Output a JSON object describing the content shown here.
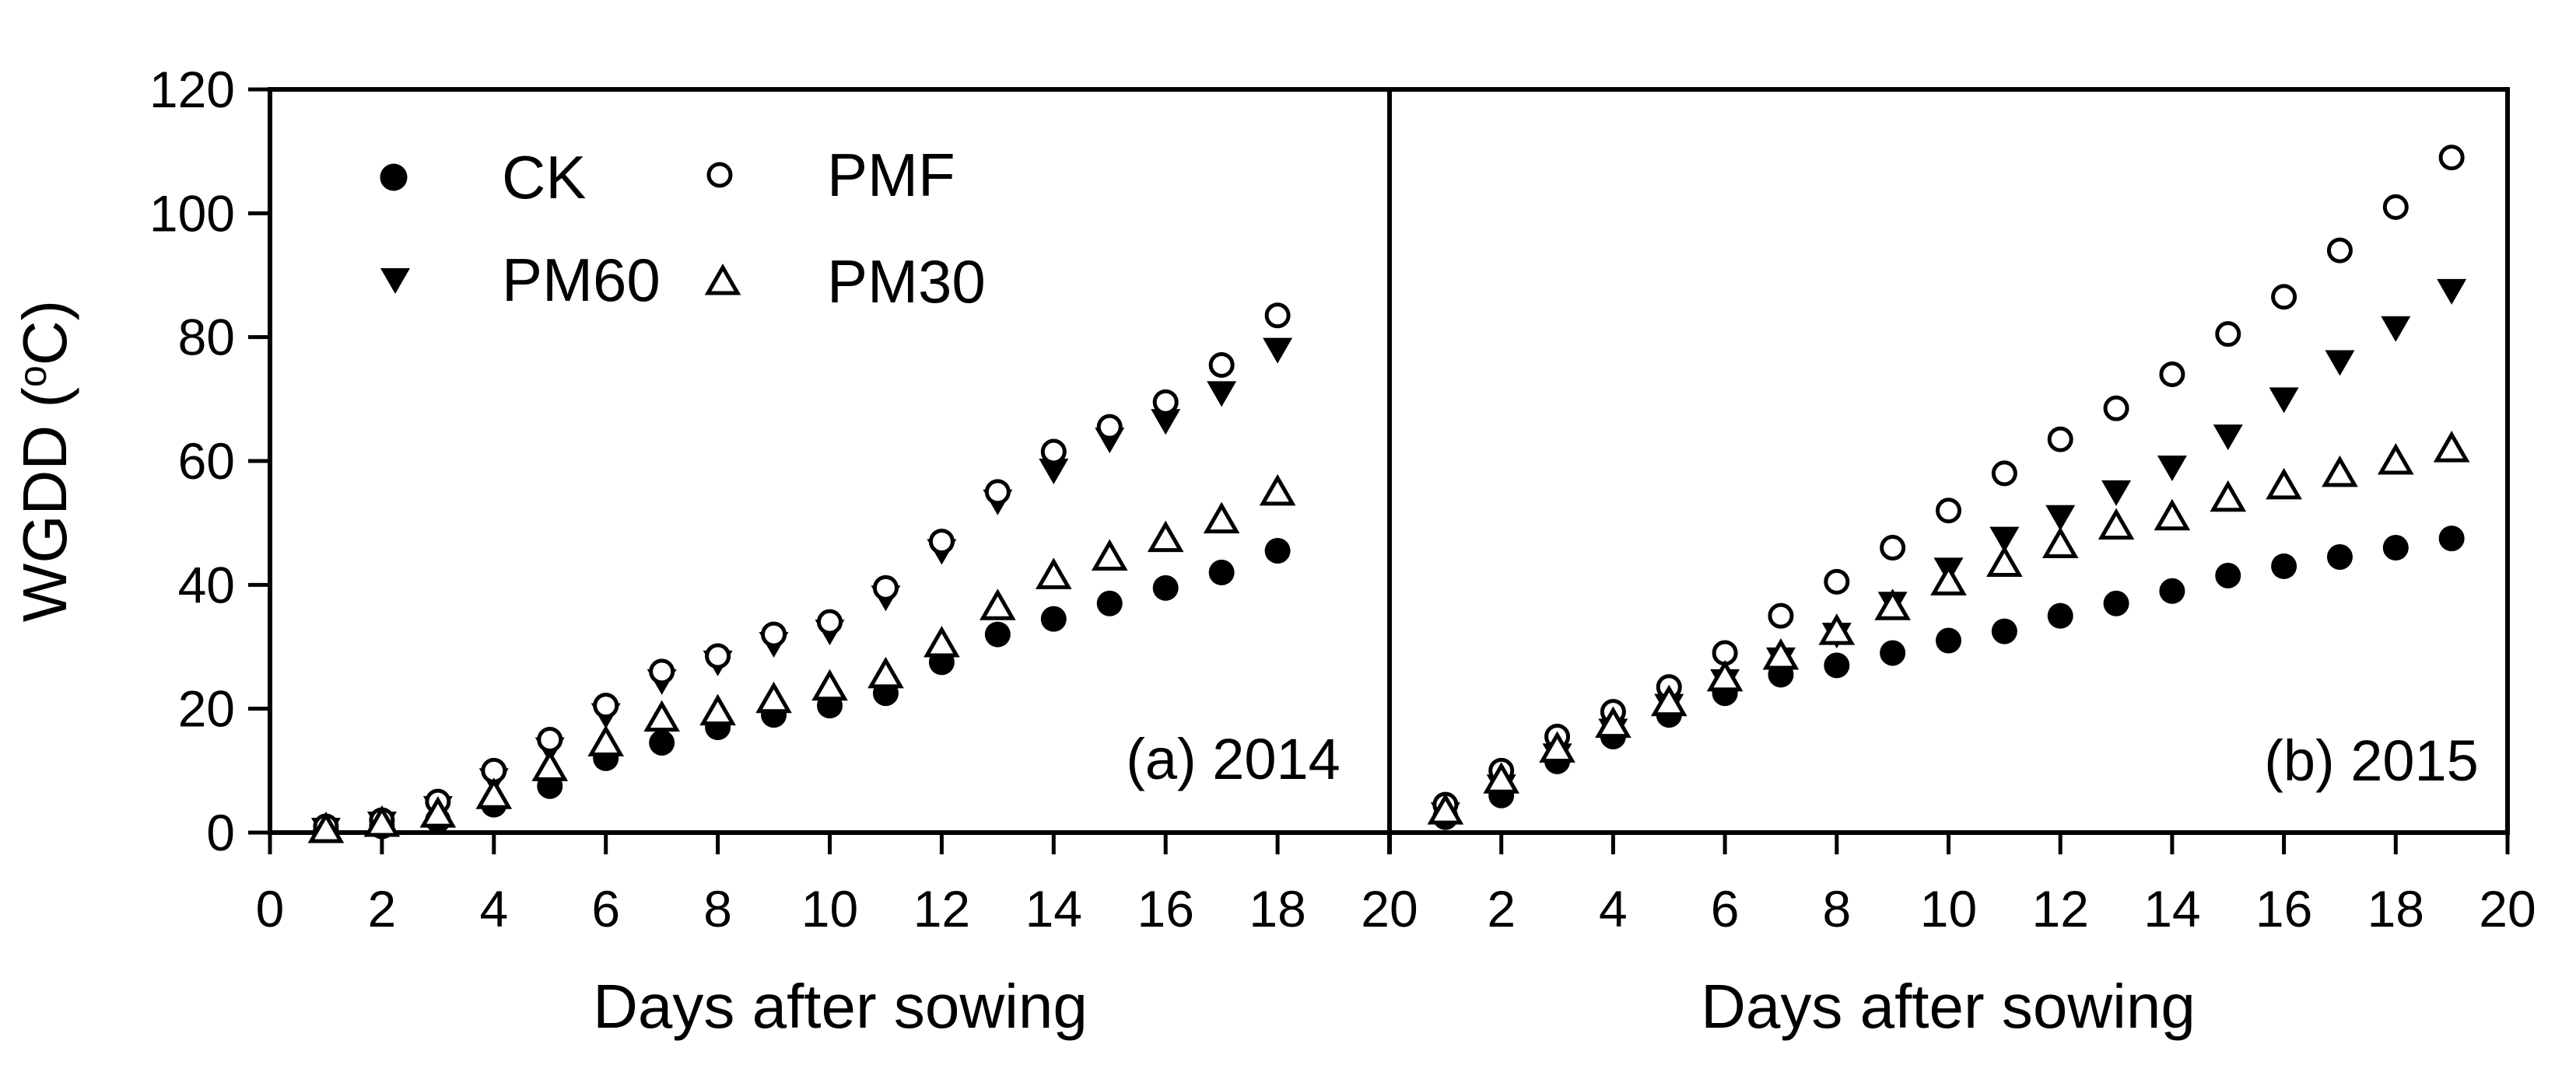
{
  "figure": {
    "background": "#ffffff",
    "ink": "#000000",
    "xlabel": "Days after sowing",
    "ylabel": {
      "prefix": "WGDD (",
      "sup": "o",
      "suffix": "C)",
      "plain": "WGDD (°C)"
    }
  },
  "legend": {
    "position": "upper-left-panel-a",
    "items": [
      {
        "label": "CK",
        "marker": "filled-circle"
      },
      {
        "label": "PMF",
        "marker": "open-circle"
      },
      {
        "label": "PM60",
        "marker": "filled-triangle-down"
      },
      {
        "label": "PM30",
        "marker": "open-triangle-up"
      }
    ]
  },
  "chart_data": [
    {
      "type": "scatter",
      "panel_label": "(a) 2014",
      "xlabel": "Days after sowing",
      "ylabel": "WGDD (°C)",
      "grid": false,
      "xlim": [
        0,
        20
      ],
      "ylim": [
        0,
        120
      ],
      "xticks": [
        0,
        2,
        4,
        6,
        8,
        10,
        12,
        14,
        16,
        18,
        20
      ],
      "xtick_labels": [
        "0",
        "2",
        "4",
        "6",
        "8",
        "10",
        "12",
        "14",
        "16",
        "18",
        "20"
      ],
      "yticks": [
        0,
        20,
        40,
        60,
        80,
        100,
        120
      ],
      "ytick_labels": [
        "0",
        "20",
        "40",
        "60",
        "80",
        "100",
        "120"
      ],
      "x": [
        1,
        2,
        3,
        4,
        5,
        6,
        7,
        8,
        9,
        10,
        11,
        12,
        13,
        14,
        15,
        16,
        17,
        18
      ],
      "series": [
        {
          "name": "CK",
          "marker": "filled-circle",
          "values": [
            0.5,
            1,
            2,
            4.5,
            7.5,
            12,
            14.5,
            17,
            19,
            20.5,
            22.5,
            27.5,
            32,
            34.5,
            37,
            39.5,
            42,
            45.5
          ]
        },
        {
          "name": "PM60",
          "marker": "filled-triangle-down",
          "values": [
            0.5,
            1.5,
            4,
            8.5,
            13.5,
            19,
            24.5,
            27.5,
            30.5,
            32.5,
            38,
            45.5,
            53.5,
            58.5,
            63.5,
            66.5,
            71,
            78
          ]
        },
        {
          "name": "PMF",
          "marker": "open-circle",
          "values": [
            1,
            2,
            5,
            10,
            15,
            20.5,
            26,
            28.5,
            32,
            34,
            39.5,
            47,
            55,
            61.5,
            65.5,
            69.5,
            75.5,
            83.5
          ]
        },
        {
          "name": "PM30",
          "marker": "open-triangle-up",
          "values": [
            0.5,
            1.5,
            3,
            6,
            10.5,
            14.5,
            18.5,
            19.5,
            21.5,
            23.5,
            25.5,
            30.5,
            36.5,
            41.5,
            44.5,
            47.5,
            50.5,
            55
          ]
        }
      ]
    },
    {
      "type": "scatter",
      "panel_label": "(b) 2015",
      "xlabel": "Days after sowing",
      "ylabel": "WGDD (°C)",
      "grid": false,
      "xlim": [
        0,
        20
      ],
      "ylim": [
        0,
        120
      ],
      "xticks": [
        2,
        4,
        6,
        8,
        10,
        12,
        14,
        16,
        18,
        20
      ],
      "xtick_labels": [
        "2",
        "4",
        "6",
        "8",
        "10",
        "12",
        "14",
        "16",
        "18",
        "20"
      ],
      "yticks": [
        0,
        20,
        40,
        60,
        80,
        100,
        120
      ],
      "ytick_labels": [],
      "x": [
        1,
        2,
        3,
        4,
        5,
        6,
        7,
        8,
        9,
        10,
        11,
        12,
        13,
        14,
        15,
        16,
        17,
        18,
        19
      ],
      "series": [
        {
          "name": "CK",
          "marker": "filled-circle",
          "values": [
            2.5,
            6,
            11.5,
            15.5,
            19,
            22.5,
            25.5,
            27,
            29,
            31,
            32.5,
            35,
            37,
            39,
            41.5,
            43,
            44.5,
            46,
            47.5
          ]
        },
        {
          "name": "PM60",
          "marker": "filled-triangle-down",
          "values": [
            3,
            7.5,
            12.5,
            16.5,
            20.5,
            24.5,
            28,
            32,
            37,
            42.5,
            47.5,
            51,
            55,
            59,
            64,
            70,
            76,
            81.5,
            87.5
          ]
        },
        {
          "name": "PMF",
          "marker": "open-circle",
          "values": [
            4.5,
            10,
            15.5,
            19.5,
            23.5,
            29,
            35,
            40.5,
            46,
            52,
            58,
            63.5,
            68.5,
            74,
            80.5,
            86.5,
            94,
            101,
            109
          ]
        },
        {
          "name": "PM30",
          "marker": "open-triangle-up",
          "values": [
            3.5,
            8.5,
            13.5,
            17.5,
            21,
            25,
            28.5,
            32.5,
            36.5,
            40.5,
            43.5,
            46.5,
            49.5,
            51,
            54,
            56,
            58,
            60,
            62
          ]
        }
      ]
    }
  ]
}
